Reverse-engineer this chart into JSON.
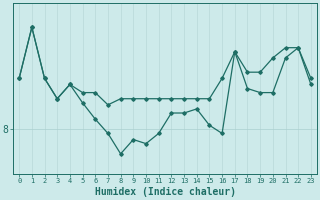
{
  "xlabel": "Humidex (Indice chaleur)",
  "x": [
    0,
    1,
    2,
    3,
    4,
    5,
    6,
    7,
    8,
    9,
    10,
    11,
    12,
    13,
    14,
    15,
    16,
    17,
    18,
    19,
    20,
    21,
    22,
    23
  ],
  "line1": [
    10.5,
    13.0,
    10.5,
    9.5,
    10.2,
    9.8,
    9.8,
    9.2,
    9.5,
    9.5,
    9.5,
    9.5,
    9.5,
    9.5,
    9.5,
    9.5,
    10.5,
    11.8,
    10.8,
    10.8,
    11.5,
    12.0,
    12.0,
    10.5
  ],
  "line2": [
    10.5,
    13.0,
    10.5,
    9.5,
    10.2,
    9.3,
    8.5,
    7.8,
    6.8,
    7.5,
    7.3,
    7.8,
    8.8,
    8.8,
    9.0,
    8.2,
    7.8,
    11.8,
    10.0,
    9.8,
    9.8,
    11.5,
    12.0,
    10.2
  ],
  "bg_color": "#cdeaea",
  "line_color": "#1e6e65",
  "grid_color_v": "#b8d8d8",
  "grid_color_h": "#aacfcf",
  "ytick_label": "8",
  "ytick_value": 8,
  "ylim": [
    5.8,
    14.2
  ],
  "xlim": [
    -0.5,
    23.5
  ],
  "fontsize_x": 5,
  "fontsize_y": 7,
  "fontsize_xlabel": 7
}
